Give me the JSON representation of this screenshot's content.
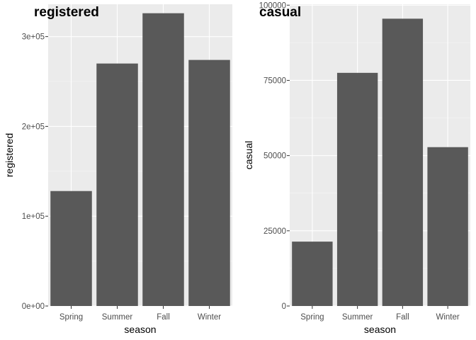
{
  "colors": {
    "panel_background": "#ebebeb",
    "grid_major": "#ffffff",
    "grid_minor": "#f5f5f5",
    "bar_fill": "#595959",
    "tick_text": "#4d4d4d",
    "axis_title": "#000000"
  },
  "chart_data": [
    {
      "type": "bar",
      "title": "registered",
      "xlabel": "season",
      "ylabel": "registered",
      "categories": [
        "Spring",
        "Summer",
        "Fall",
        "Winter"
      ],
      "values": [
        128000,
        270000,
        326000,
        274000
      ],
      "ylim": [
        0,
        336000
      ],
      "y_ticks": [
        0,
        100000,
        200000,
        300000
      ],
      "y_tick_labels": [
        "0e+00",
        "1e+05",
        "2e+05",
        "3e+05"
      ],
      "grid": true
    },
    {
      "type": "bar",
      "title": "casual",
      "xlabel": "season",
      "ylabel": "casual",
      "categories": [
        "Spring",
        "Summer",
        "Fall",
        "Winter"
      ],
      "values": [
        21400,
        77500,
        95500,
        52800
      ],
      "ylim": [
        0,
        100300
      ],
      "y_ticks": [
        0,
        25000,
        50000,
        75000,
        100000
      ],
      "y_tick_labels": [
        "0",
        "25000",
        "50000",
        "75000",
        "100000"
      ],
      "grid": true
    }
  ]
}
